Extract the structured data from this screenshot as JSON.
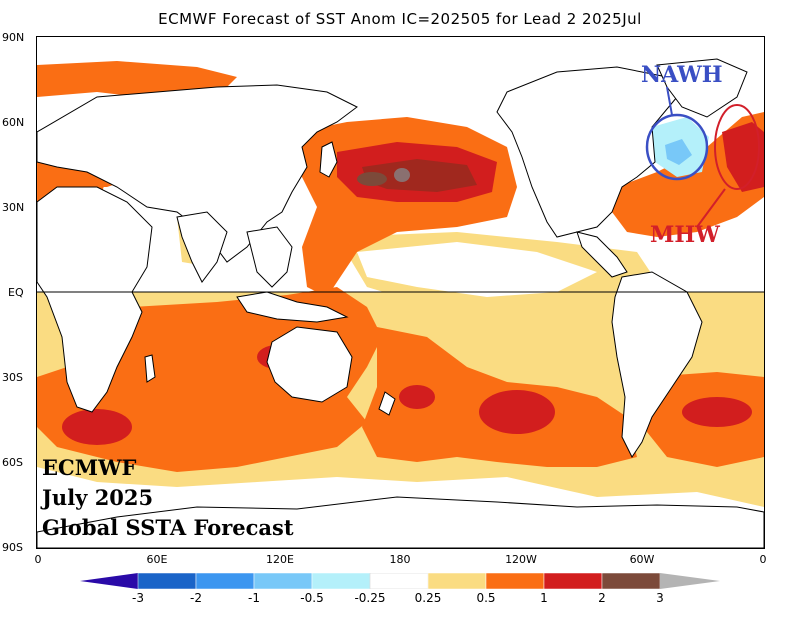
{
  "title": "ECMWF Forecast of SST Anom IC=202505 for Lead 2 2025Jul",
  "lat_labels": [
    "90N",
    "60N",
    "30N",
    "EQ",
    "30S",
    "60S",
    "90S"
  ],
  "lon_labels": [
    "0",
    "60E",
    "120E",
    "180",
    "120W",
    "60W",
    "0"
  ],
  "overlay": {
    "line1": "ECMWF",
    "line2": "July 2025",
    "line3": "Global SSTA Forecast"
  },
  "annotations": {
    "nawh": {
      "text": "NAWH",
      "color": "#3a4fc4"
    },
    "mhw": {
      "text": "MHW",
      "color": "#d21f2a"
    }
  },
  "colorbar": {
    "labels": [
      "-3",
      "-2",
      "-1",
      "-0.5",
      "-0.25",
      "0.25",
      "0.5",
      "1",
      "2",
      "3"
    ],
    "colors": [
      "#2a0aa8",
      "#1a64c8",
      "#3c96f0",
      "#78c8f8",
      "#b4f0fa",
      "#ffffff",
      "#fadc82",
      "#fa6e14",
      "#d21e1e",
      "#7c4a3a",
      "#b4b4b4"
    ]
  },
  "legend_colors": {
    "weak_warm": "#fadc82",
    "warm": "#fa6e14",
    "strong_warm": "#d21e1e",
    "very_strong": "#a0281e",
    "cool": "#b4f0fa",
    "land": "#ffffff"
  }
}
